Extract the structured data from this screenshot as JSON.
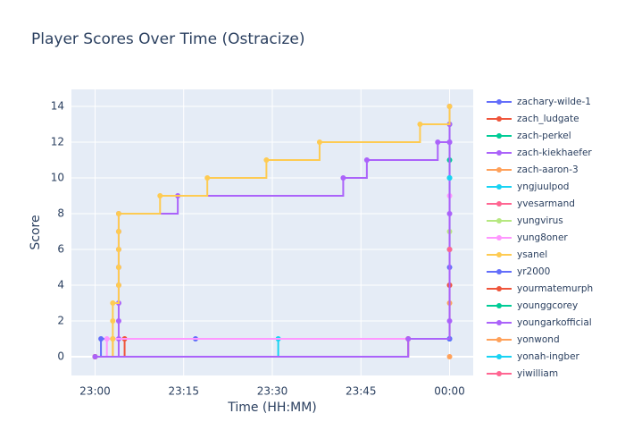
{
  "chart_data": {
    "type": "line",
    "shape": "step",
    "title": "Player Scores Over Time (Ostracize)",
    "x_label": "Time (HH:MM)",
    "y_label": "Score",
    "xlim": [
      "22:56",
      "00:04"
    ],
    "xticks": [
      "23:00",
      "23:15",
      "23:30",
      "23:45",
      "00:00"
    ],
    "ylim": [
      -1.05,
      14.95
    ],
    "yticks": [
      0,
      2,
      4,
      6,
      8,
      10,
      12,
      14
    ],
    "grid": true,
    "legend": "right",
    "series": [
      {
        "name": "zachary-wilde-1",
        "color": "#636efa",
        "x": [
          "23:00",
          "23:01",
          "23:17",
          "00:00",
          "00:00",
          "00:00"
        ],
        "values": [
          0,
          1,
          1,
          1,
          5,
          12
        ]
      },
      {
        "name": "zach_ludgate",
        "color": "#EF553B",
        "x": [
          "23:00",
          "23:05"
        ],
        "values": [
          0,
          1
        ]
      },
      {
        "name": "zach-perkel",
        "color": "#00cc96",
        "x": [
          "00:00",
          "00:00",
          "00:00"
        ],
        "values": [
          6,
          10,
          13
        ]
      },
      {
        "name": "zach-kiekhaefer",
        "color": "#ab63fa",
        "x": [
          "23:00",
          "23:04",
          "23:04",
          "23:04",
          "23:04",
          "23:04",
          "23:04",
          "23:04",
          "23:04",
          "23:14",
          "23:42",
          "23:46",
          "23:58",
          "00:00",
          "00:00"
        ],
        "values": [
          0,
          1,
          2,
          3,
          4,
          5,
          6,
          7,
          8,
          9,
          10,
          11,
          12,
          13,
          14
        ]
      },
      {
        "name": "zach-aaron-3",
        "color": "#FFA15A",
        "x": [
          "23:00",
          "23:03",
          "00:00"
        ],
        "values": [
          0,
          1,
          3
        ]
      },
      {
        "name": "yngjuulpod",
        "color": "#19d3f3",
        "x": [
          "23:00",
          "23:31",
          "00:00"
        ],
        "values": [
          0,
          1,
          1
        ]
      },
      {
        "name": "yvesarmand",
        "color": "#FF6692",
        "x": [
          "00:00"
        ],
        "values": [
          4
        ]
      },
      {
        "name": "yungvirus",
        "color": "#B6E880",
        "x": [
          "00:00"
        ],
        "values": [
          7
        ]
      },
      {
        "name": "yung8oner",
        "color": "#FF97FF",
        "x": [
          "23:00",
          "23:02",
          "00:00"
        ],
        "values": [
          0,
          1,
          9
        ]
      },
      {
        "name": "ysanel",
        "color": "#FECB52",
        "x": [
          "23:00",
          "23:03",
          "23:03",
          "23:03",
          "23:04",
          "23:04",
          "23:04",
          "23:04",
          "23:04",
          "23:11",
          "23:19",
          "23:29",
          "23:38",
          "23:55",
          "00:00"
        ],
        "values": [
          0,
          1,
          2,
          3,
          4,
          5,
          6,
          7,
          8,
          9,
          10,
          11,
          12,
          13,
          14
        ]
      },
      {
        "name": "yr2000",
        "color": "#636efa",
        "x": [
          "00:00"
        ],
        "values": [
          1
        ]
      },
      {
        "name": "yourmatemurph",
        "color": "#EF553B",
        "x": [
          "23:00",
          "23:53",
          "00:00"
        ],
        "values": [
          0,
          1,
          4
        ]
      },
      {
        "name": "younggcorey",
        "color": "#00cc96",
        "x": [
          "00:00"
        ],
        "values": [
          11
        ]
      },
      {
        "name": "youngarkofficial",
        "color": "#ab63fa",
        "x": [
          "23:00",
          "23:53",
          "00:00",
          "00:00",
          "00:00"
        ],
        "values": [
          0,
          1,
          2,
          8,
          12
        ]
      },
      {
        "name": "yonwond",
        "color": "#FFA15A",
        "x": [
          "00:00"
        ],
        "values": [
          0
        ]
      },
      {
        "name": "yonah-ingber",
        "color": "#19d3f3",
        "x": [
          "00:00"
        ],
        "values": [
          10
        ]
      },
      {
        "name": "yiwilliam",
        "color": "#FF6692",
        "x": [
          "00:00"
        ],
        "values": [
          6
        ]
      }
    ]
  }
}
